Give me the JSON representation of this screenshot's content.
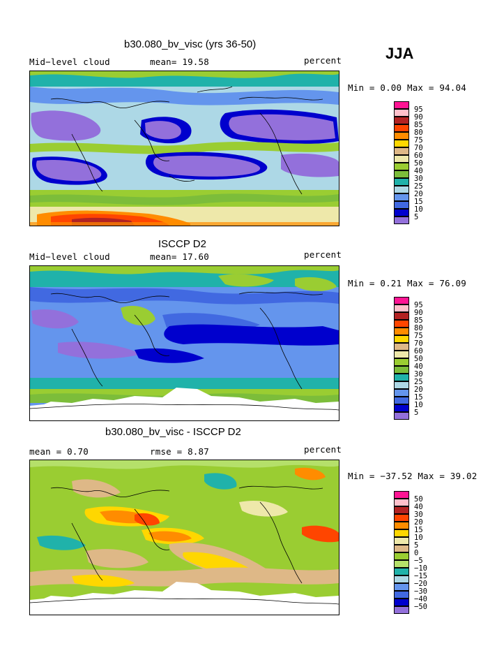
{
  "season": "JJA",
  "panels": [
    {
      "title": "b30.080_bv_visc (yrs 36-50)",
      "left_label": "Mid−level cloud",
      "center_label": "mean=  19.58",
      "right_label": "percent",
      "minmax": "Min =    0.00 Max =  94.04",
      "legend": [
        "95",
        "90",
        "85",
        "80",
        "75",
        "70",
        "60",
        "50",
        "40",
        "30",
        "25",
        "20",
        "15",
        "10",
        "5"
      ],
      "colors": [
        "#ff1493",
        "#ffc0cb",
        "#b22222",
        "#ff4500",
        "#ff8c00",
        "#ffd700",
        "#deb887",
        "#eee8aa",
        "#9acd32",
        "#7cbd3a",
        "#20b2aa",
        "#add8e6",
        "#6495ed",
        "#4169e1",
        "#0000cd",
        "#9370db"
      ]
    },
    {
      "title": "ISCCP D2",
      "left_label": "Mid−level cloud",
      "center_label": "mean=  17.60",
      "right_label": "percent",
      "minmax": "Min =    0.21 Max =  76.09",
      "legend": [
        "95",
        "90",
        "85",
        "80",
        "75",
        "70",
        "60",
        "50",
        "40",
        "30",
        "25",
        "20",
        "15",
        "10",
        "5"
      ],
      "colors": [
        "#ff1493",
        "#ffc0cb",
        "#b22222",
        "#ff4500",
        "#ff8c00",
        "#ffd700",
        "#deb887",
        "#eee8aa",
        "#9acd32",
        "#7cbd3a",
        "#20b2aa",
        "#add8e6",
        "#6495ed",
        "#4169e1",
        "#0000cd",
        "#9370db"
      ]
    },
    {
      "title": "b30.080_bv_visc - ISCCP D2",
      "left_label": "mean =    0.70",
      "center_label": "rmse =    8.87",
      "right_label": "percent",
      "minmax": "Min = −37.52 Max =  39.02",
      "legend": [
        "50",
        "40",
        "30",
        "20",
        "15",
        "10",
        "5",
        "0",
        "−5",
        "−10",
        "−15",
        "−20",
        "−30",
        "−40",
        "−50"
      ],
      "colors": [
        "#ff1493",
        "#ffc0cb",
        "#b22222",
        "#ff4500",
        "#ff8c00",
        "#ffd700",
        "#eee8aa",
        "#deb887",
        "#9acd32",
        "#b5e06a",
        "#20b2aa",
        "#add8e6",
        "#6495ed",
        "#4169e1",
        "#0000cd",
        "#9370db"
      ]
    }
  ]
}
